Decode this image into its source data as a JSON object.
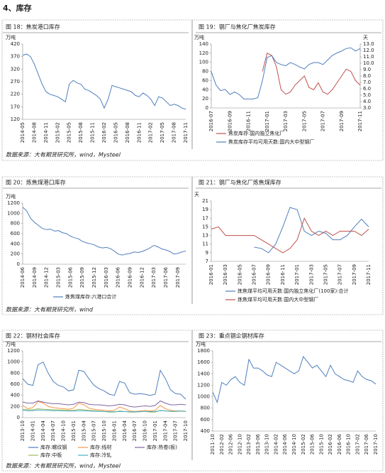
{
  "heading": "4、库存",
  "sources": [
    "数据来源：大有期货研究所，wind，Mysteel",
    "数据来源：大有期货研究所，wind",
    "数据来源：大有期货研究所，wind，Mysteel"
  ],
  "chart_data": [
    {
      "type": "line",
      "title": "图 18：焦炭港口库存",
      "y_unit": "万吨",
      "categories": [
        "2014-05",
        null,
        null,
        "2014-08",
        null,
        null,
        "2014-11",
        null,
        null,
        "2015-02",
        null,
        null,
        "2015-05",
        null,
        null,
        "2015-08",
        null,
        null,
        "2015-11",
        null,
        null,
        "2016-02",
        null,
        null,
        "2016-05",
        null,
        null,
        "2016-08",
        null,
        null,
        "2016-11",
        null,
        null,
        "2017-02",
        null,
        null,
        "2017-05",
        null,
        null,
        "2017-08",
        null,
        null,
        "2017-11"
      ],
      "ylim": [
        120,
        420
      ],
      "yticks": [
        120,
        170,
        220,
        270,
        320,
        370,
        420
      ],
      "series": [
        {
          "name": null,
          "color": "#4f7fbf",
          "values": [
            375,
            380,
            370,
            340,
            300,
            260,
            230,
            220,
            215,
            210,
            200,
            190,
            260,
            275,
            265,
            260,
            240,
            235,
            225,
            215,
            200,
            165,
            200,
            255,
            250,
            245,
            240,
            235,
            230,
            215,
            210,
            225,
            215,
            200,
            175,
            210,
            205,
            190,
            175,
            180,
            175,
            165,
            160
          ]
        }
      ]
    },
    {
      "type": "line",
      "title": "图 19：钢厂与焦化厂焦炭库存",
      "y_unit": "万吨",
      "y2_unit": "天",
      "categories": [
        "2016-07",
        null,
        null,
        null,
        "2016-09",
        null,
        null,
        null,
        "2016-11",
        null,
        null,
        null,
        "2017-01",
        null,
        null,
        null,
        "2017-03",
        null,
        null,
        null,
        "2017-05",
        null,
        null,
        null,
        "2017-07",
        null,
        null,
        null,
        "2017-09",
        null,
        null,
        null,
        "2017-11"
      ],
      "ylim": [
        0,
        140
      ],
      "yticks": [
        0,
        20,
        40,
        60,
        80,
        100,
        120,
        140
      ],
      "y2lim": [
        3,
        13
      ],
      "y2ticks": [
        {
          "value": 3,
          "label": "3.0"
        },
        {
          "value": 4,
          "label": "4.0"
        },
        {
          "value": 5,
          "label": "5.0"
        },
        {
          "value": 6,
          "label": "6.0"
        },
        {
          "value": 7,
          "label": "7.0"
        },
        {
          "value": 8,
          "label": "8.0"
        },
        {
          "value": 9,
          "label": "9.0"
        },
        {
          "value": 10,
          "label": "10.0"
        },
        {
          "value": 11,
          "label": "11.0"
        },
        {
          "value": 12,
          "label": "12.0"
        },
        {
          "value": 13,
          "label": "13.0"
        }
      ],
      "series": [
        {
          "name": "焦炭库存:国内独立焦化厂",
          "color": "#c0504d",
          "values": [
            null,
            null,
            null,
            null,
            null,
            null,
            null,
            null,
            null,
            null,
            null,
            80,
            120,
            115,
            90,
            40,
            30,
            35,
            50,
            60,
            70,
            45,
            40,
            55,
            35,
            30,
            40,
            55,
            70,
            85,
            80,
            60,
            50
          ]
        },
        {
          "name": "焦炭库存平均可用天数:国内大中型钢厂",
          "color": "#4f7fbf",
          "axis": "y2",
          "values": [
            8.7,
            6.6,
            5.7,
            5.9,
            5.1,
            5.5,
            5.1,
            4.4,
            4.4,
            4.4,
            4.6,
            7.3,
            10.9,
            11.2,
            10.1,
            9.8,
            9.6,
            10.1,
            9.8,
            9.4,
            9.1,
            9.8,
            10.1,
            10.1,
            9.8,
            10.5,
            11.2,
            11.6,
            11.9,
            12.3,
            12.4,
            11.9,
            12.3
          ]
        }
      ]
    },
    {
      "type": "line",
      "title": "图 20：炼焦煤港口库存",
      "y_unit": "万吨",
      "categories": [
        "2014-06",
        null,
        null,
        "2014-09",
        null,
        null,
        "2014-12",
        null,
        null,
        "2015-03",
        null,
        null,
        "2015-06",
        null,
        null,
        "2015-09",
        null,
        null,
        "2015-12",
        null,
        null,
        "2016-03",
        null,
        null,
        "2016-06",
        null,
        null,
        "2016-09",
        null,
        null,
        "2016-12",
        null,
        null,
        "2017-03",
        null,
        null,
        "2017-06",
        null,
        null,
        "2017-09",
        null,
        null
      ],
      "ylim": [
        0,
        1200
      ],
      "yticks": [
        0,
        200,
        400,
        600,
        800,
        1000,
        1200
      ],
      "series": [
        {
          "name": "炼焦煤库存:六港口合计",
          "color": "#4f7fbf",
          "values": [
            1120,
            1050,
            900,
            820,
            760,
            700,
            680,
            690,
            650,
            660,
            620,
            600,
            550,
            520,
            500,
            450,
            420,
            400,
            380,
            340,
            320,
            330,
            310,
            260,
            200,
            180,
            200,
            210,
            240,
            230,
            250,
            280,
            320,
            370,
            340,
            300,
            280,
            250,
            200,
            210,
            240,
            260
          ]
        }
      ]
    },
    {
      "type": "line",
      "title": "图 21：钢厂与焦化厂炼焦煤库存",
      "y_unit": "天",
      "categories": [
        "2016-01",
        null,
        "2016-03",
        null,
        "2016-05",
        null,
        "2016-07",
        null,
        "2016-09",
        null,
        "2016-11",
        null,
        "2017-01",
        null,
        "2017-03",
        null,
        "2017-05",
        null,
        "2017-07",
        null,
        "2017-09",
        null,
        "2017-11"
      ],
      "ylim": [
        7,
        21
      ],
      "yticks": [
        7,
        9,
        11,
        13,
        15,
        17,
        19,
        21
      ],
      "series": [
        {
          "name": "炼焦煤平均可用天数:国内独立焦化厂(100家):合计",
          "color": "#4f7fbf",
          "values": [
            null,
            null,
            null,
            null,
            null,
            null,
            10.3,
            10,
            9,
            11,
            15,
            19.5,
            19,
            14,
            13,
            14,
            13.5,
            12,
            12,
            13,
            15,
            16.8,
            15
          ]
        },
        {
          "name": "炼焦煤平均可用天数:国内大中型钢厂",
          "color": "#c0504d",
          "values": [
            14.5,
            15,
            13,
            13,
            13,
            13,
            13,
            12,
            11,
            10,
            9,
            10,
            12,
            17,
            14,
            13,
            14,
            13,
            14,
            14,
            14,
            13,
            14.5
          ]
        }
      ]
    },
    {
      "type": "line",
      "title": "图 22：钢材社会库存",
      "y_unit": "万吨",
      "categories": [
        "2013-10",
        null,
        "2014-01",
        null,
        "2014-04",
        null,
        "2014-07",
        null,
        "2014-10",
        null,
        "2015-01",
        null,
        "2015-04",
        null,
        "2015-07",
        null,
        "2015-10",
        null,
        "2016-01",
        null,
        "2016-04",
        null,
        "2016-07",
        null,
        "2016-10",
        null,
        "2017-01",
        null,
        "2017-04",
        null,
        "2017-07",
        null,
        "2017-10"
      ],
      "ylim": [
        0,
        1200
      ],
      "yticks": [
        0,
        200,
        400,
        600,
        800,
        1000,
        1200
      ],
      "series": [
        {
          "name": "库存:螺纹钢",
          "color": "#4f7fbf",
          "values": [
            700,
            600,
            580,
            950,
            1000,
            800,
            650,
            580,
            550,
            480,
            500,
            850,
            830,
            700,
            580,
            520,
            480,
            420,
            400,
            650,
            620,
            450,
            420,
            430,
            420,
            400,
            420,
            850,
            700,
            500,
            430,
            420,
            330
          ]
        },
        {
          "name": "库存:线材",
          "color": "#f79646",
          "values": [
            220,
            160,
            180,
            290,
            260,
            200,
            180,
            170,
            160,
            150,
            170,
            260,
            230,
            170,
            150,
            140,
            130,
            120,
            130,
            190,
            160,
            120,
            110,
            120,
            130,
            120,
            130,
            220,
            160,
            130,
            120,
            120,
            110
          ]
        },
        {
          "name": "库存:热卷(板)",
          "color": "#8064a2",
          "values": [
            280,
            260,
            260,
            300,
            280,
            260,
            250,
            250,
            240,
            230,
            240,
            280,
            270,
            240,
            230,
            230,
            220,
            210,
            220,
            240,
            230,
            200,
            190,
            200,
            210,
            200,
            220,
            300,
            260,
            230,
            230,
            240,
            230
          ]
        },
        {
          "name": "库存:中板",
          "color": "#9bbb59",
          "values": [
            150,
            140,
            140,
            160,
            150,
            145,
            140,
            140,
            135,
            130,
            130,
            150,
            140,
            130,
            125,
            120,
            110,
            100,
            100,
            120,
            110,
            100,
            100,
            105,
            110,
            100,
            100,
            130,
            120,
            110,
            110,
            115,
            110
          ]
        },
        {
          "name": "库存:冷轧",
          "color": "#4bacc6",
          "values": [
            130,
            125,
            125,
            135,
            130,
            128,
            125,
            125,
            120,
            118,
            118,
            125,
            122,
            118,
            115,
            112,
            110,
            105,
            105,
            110,
            108,
            105,
            105,
            108,
            110,
            108,
            110,
            125,
            120,
            115,
            115,
            118,
            115
          ]
        }
      ]
    },
    {
      "type": "line",
      "title": "图 23：重点钢企钢材库存",
      "y_unit": "万吨",
      "categories": [
        "2011-10",
        null,
        "2012-02",
        null,
        "2012-06",
        null,
        "2012-10",
        null,
        "2013-02",
        null,
        "2013-06",
        null,
        "2013-10",
        null,
        "2014-02",
        null,
        "2014-06",
        null,
        "2014-10",
        null,
        "2015-02",
        null,
        "2015-06",
        null,
        "2015-10",
        null,
        "2016-02",
        null,
        "2016-06",
        null,
        "2016-10",
        null,
        "2017-02",
        null,
        "2017-06",
        null,
        "2017-10"
      ],
      "ylim": [
        400,
        1800
      ],
      "yticks": [
        400,
        600,
        800,
        1000,
        1200,
        1400,
        1600,
        1800
      ],
      "series": [
        {
          "name": null,
          "color": "#4f7fbf",
          "values": [
            1080,
            900,
            1250,
            1200,
            1300,
            1350,
            1250,
            1200,
            1650,
            1500,
            1500,
            1450,
            1380,
            1350,
            1600,
            1550,
            1500,
            1450,
            1400,
            1450,
            1700,
            1600,
            1500,
            1550,
            1450,
            1350,
            1550,
            1400,
            1350,
            1300,
            1280,
            1250,
            1450,
            1350,
            1300,
            1280,
            1220
          ]
        }
      ]
    }
  ]
}
